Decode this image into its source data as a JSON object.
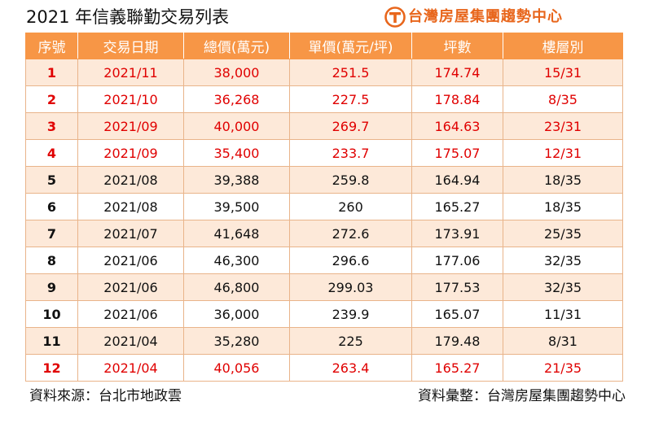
{
  "title": "2021 年信義聯勤交易列表",
  "brand": {
    "name": "台灣房屋集團趨勢中心",
    "color": "#e8661c"
  },
  "table": {
    "headers": [
      "序號",
      "交易日期",
      "總價(萬元)",
      "單價(萬元/坪)",
      "坪數",
      "樓層別"
    ],
    "header_color": "#f79646",
    "stripe_color": "#fde9d9",
    "highlight_color": "#e00000",
    "rows": [
      {
        "idx": "1",
        "date": "2021/11",
        "total": "38,000",
        "unit": "251.5",
        "ping": "174.74",
        "floor": "15/31",
        "highlight": true
      },
      {
        "idx": "2",
        "date": "2021/10",
        "total": "36,268",
        "unit": "227.5",
        "ping": "178.84",
        "floor": "8/35",
        "highlight": true
      },
      {
        "idx": "3",
        "date": "2021/09",
        "total": "40,000",
        "unit": "269.7",
        "ping": "164.63",
        "floor": "23/31",
        "highlight": true
      },
      {
        "idx": "4",
        "date": "2021/09",
        "total": "35,400",
        "unit": "233.7",
        "ping": "175.07",
        "floor": "12/31",
        "highlight": true
      },
      {
        "idx": "5",
        "date": "2021/08",
        "total": "39,388",
        "unit": "259.8",
        "ping": "164.94",
        "floor": "18/35",
        "highlight": false
      },
      {
        "idx": "6",
        "date": "2021/08",
        "total": "39,500",
        "unit": "260",
        "ping": "165.27",
        "floor": "18/35",
        "highlight": false
      },
      {
        "idx": "7",
        "date": "2021/07",
        "total": "41,648",
        "unit": "272.6",
        "ping": "173.91",
        "floor": "25/35",
        "highlight": false
      },
      {
        "idx": "8",
        "date": "2021/06",
        "total": "46,300",
        "unit": "296.6",
        "ping": "177.06",
        "floor": "32/35",
        "highlight": false
      },
      {
        "idx": "9",
        "date": "2021/06",
        "total": "46,800",
        "unit": "299.03",
        "ping": "177.53",
        "floor": "32/35",
        "highlight": false
      },
      {
        "idx": "10",
        "date": "2021/06",
        "total": "36,000",
        "unit": "239.9",
        "ping": "165.07",
        "floor": "11/31",
        "highlight": false
      },
      {
        "idx": "11",
        "date": "2021/04",
        "total": "35,280",
        "unit": "225",
        "ping": "179.48",
        "floor": "8/31",
        "highlight": false
      },
      {
        "idx": "12",
        "date": "2021/04",
        "total": "40,056",
        "unit": "263.4",
        "ping": "165.27",
        "floor": "21/35",
        "highlight": true
      }
    ]
  },
  "footer": {
    "source": "資料來源：台北市地政雲",
    "compiled": "資料彙整：台灣房屋集團趨勢中心"
  }
}
